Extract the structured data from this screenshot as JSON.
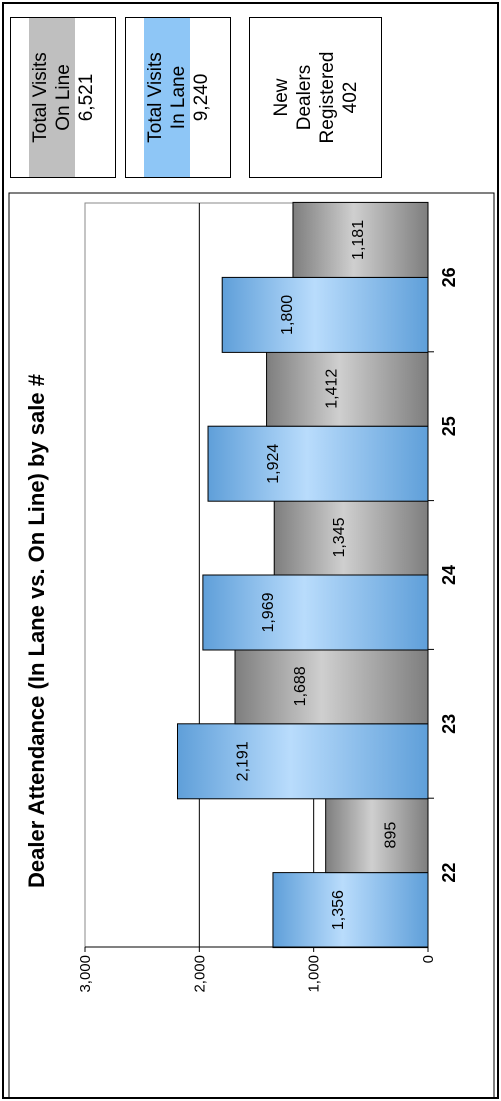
{
  "chart_data": {
    "type": "bar",
    "title": "Dealer Attendance (In Lane vs. On Line) by sale #",
    "categories": [
      "22",
      "23",
      "24",
      "25",
      "26"
    ],
    "series": [
      {
        "values": [
          1356,
          2191,
          1969,
          1924,
          1800
        ],
        "color": "#8ec6f6"
      },
      {
        "values": [
          895,
          1688,
          1345,
          1412,
          1181
        ],
        "color": "#a9a9a9"
      }
    ],
    "data_labels": [
      [
        "1,356",
        "2,191",
        "1,969",
        "1,924",
        "1,800"
      ],
      [
        "895",
        "1,688",
        "1,345",
        "1,412",
        "1,181"
      ]
    ],
    "yticks": [
      "0",
      "1,000",
      "2,000",
      "3,000"
    ],
    "ylim": [
      0,
      3000
    ],
    "grid": true
  },
  "summary": {
    "online": {
      "line1": "Total Visits",
      "line2": "On Line",
      "value": "6,521",
      "color": "#bfbfbf"
    },
    "inlane": {
      "line1": "Total Visits",
      "line2": "In Lane",
      "value": "9,240",
      "color": "#8ec6f6"
    },
    "dealers": {
      "line1": "New",
      "line2": "Dealers",
      "line3": "Registered",
      "value": "402"
    }
  }
}
